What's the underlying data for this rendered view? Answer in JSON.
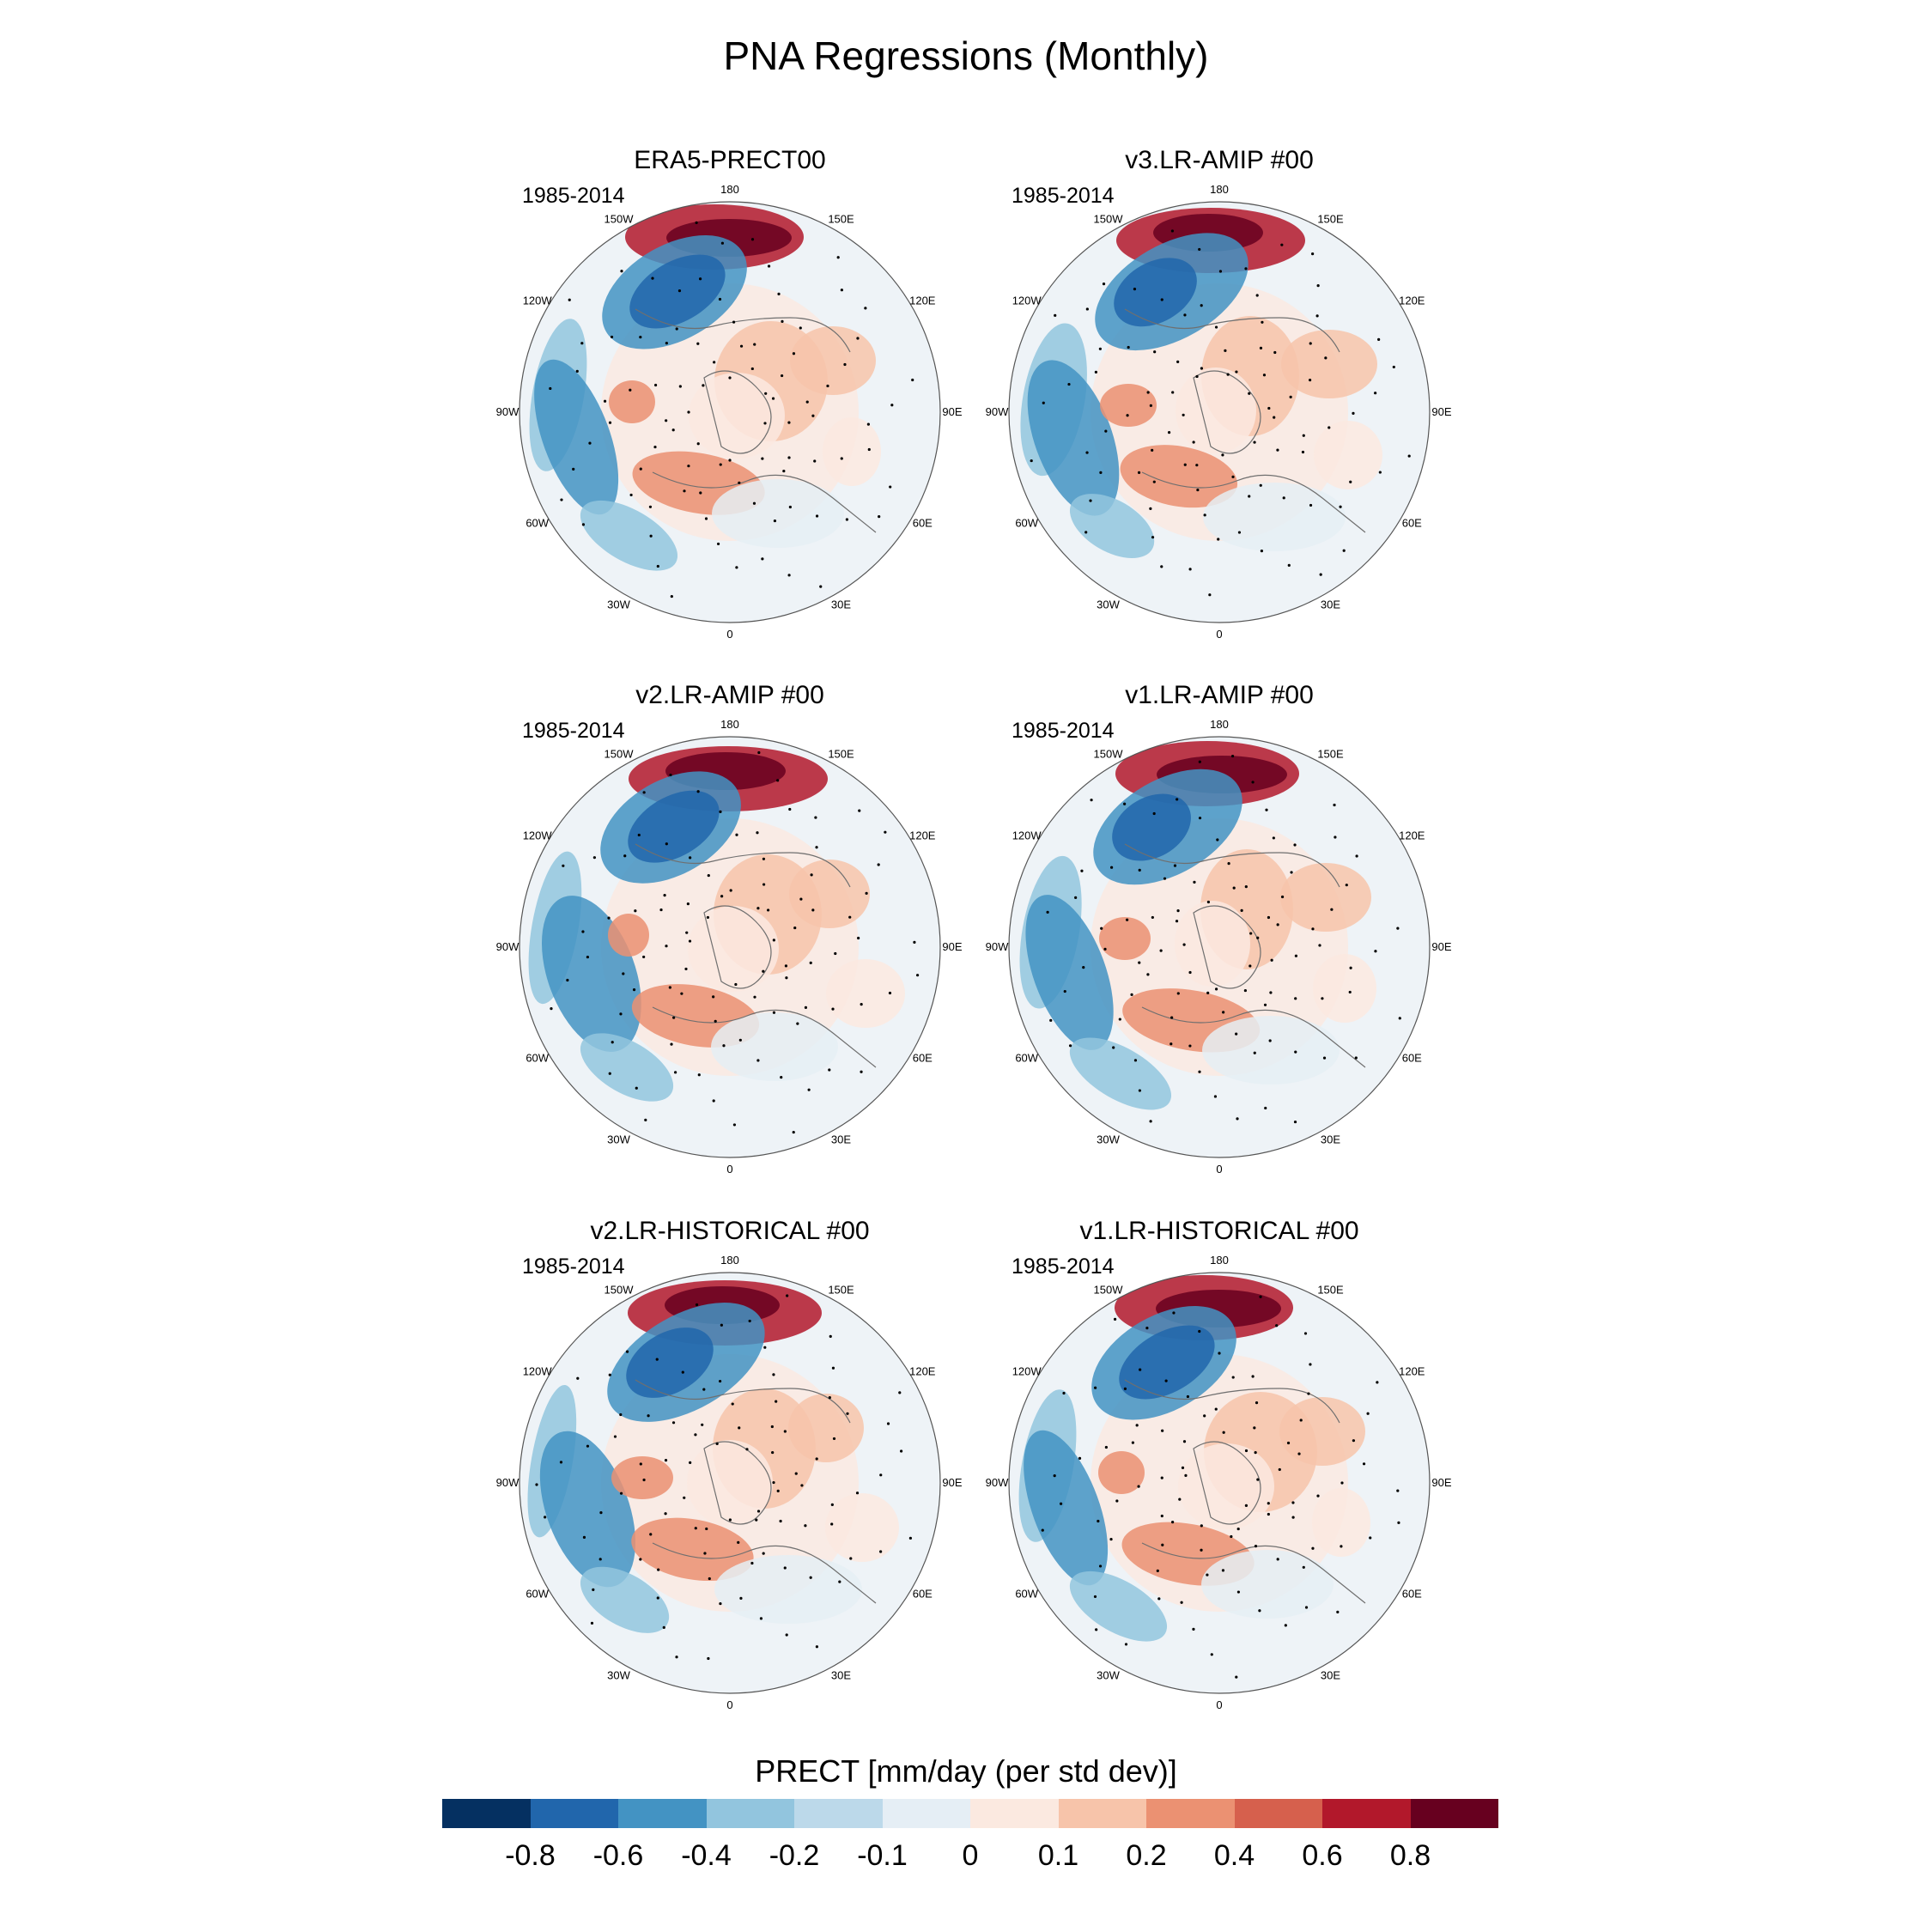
{
  "title": "PNA Regressions (Monthly)",
  "lon_labels": [
    "180",
    "150E",
    "120E",
    "90E",
    "60E",
    "30E",
    "0",
    "30W",
    "60W",
    "90W",
    "120W",
    "150W"
  ],
  "panels": [
    {
      "title": "ERA5-PRECT00",
      "period": "1985-2014"
    },
    {
      "title": "v3.LR-AMIP  #00",
      "period": "1985-2014"
    },
    {
      "title": "v2.LR-AMIP  #00",
      "period": "1985-2014"
    },
    {
      "title": "v1.LR-AMIP  #00",
      "period": "1985-2014"
    },
    {
      "title": "v2.LR-HISTORICAL  #00",
      "period": "1985-2014"
    },
    {
      "title": "v1.LR-HISTORICAL  #00",
      "period": "1985-2014"
    }
  ],
  "colorbar": {
    "title": "PRECT [mm/day (per std dev)]",
    "colors": [
      "#053061",
      "#2166ac",
      "#4393c3",
      "#92c5de",
      "#bcd9ea",
      "#e5eef5",
      "#fbe9e0",
      "#f7c4aa",
      "#eb9172",
      "#d6604d",
      "#b2182b",
      "#67001f"
    ],
    "ticks": [
      "-0.8",
      "-0.6",
      "-0.4",
      "-0.2",
      "-0.1",
      "0",
      "0.1",
      "0.2",
      "0.4",
      "0.6",
      "0.8"
    ]
  },
  "colors": {
    "background": "#ffffff",
    "stipple": "#000000",
    "coast": "#6f6f6f"
  }
}
